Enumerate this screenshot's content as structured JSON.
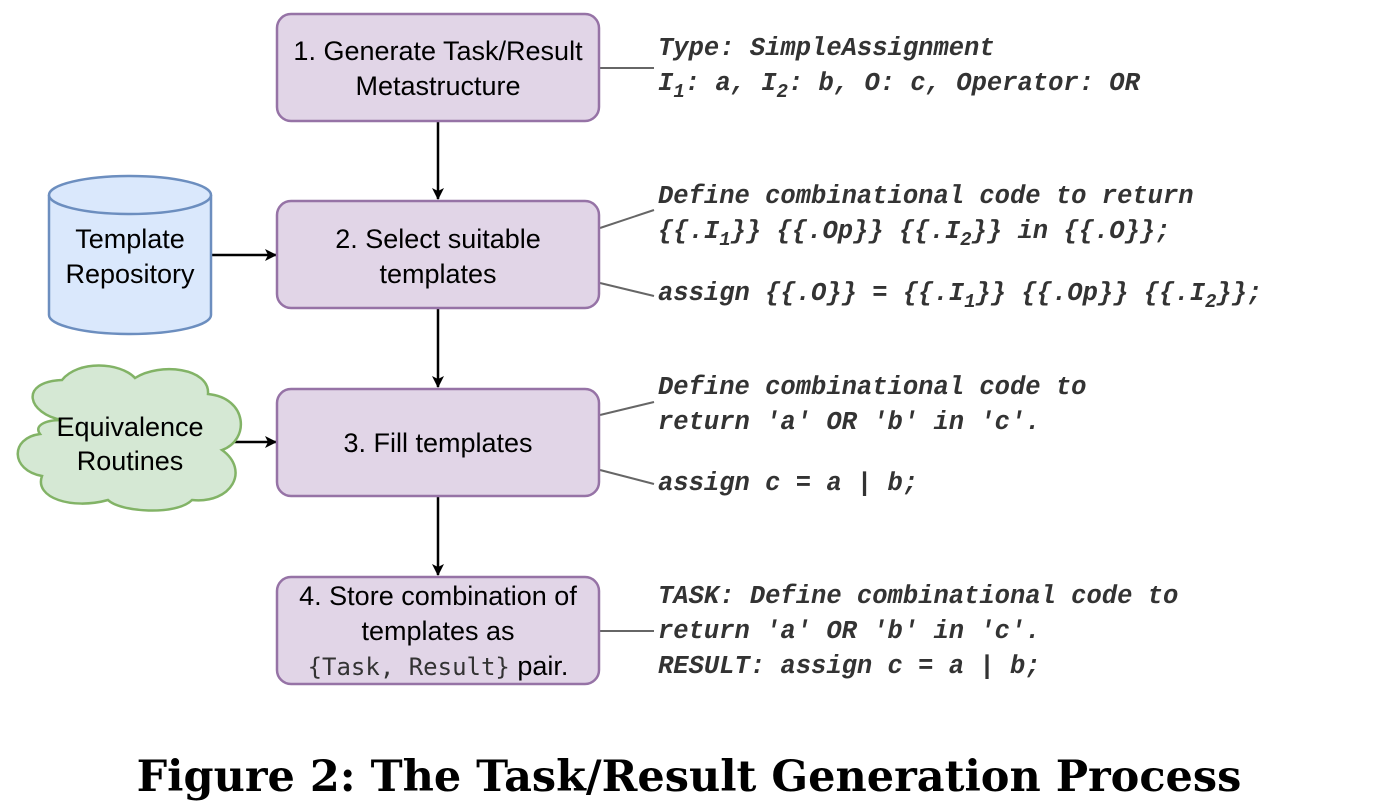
{
  "caption": "Figure 2: The Task/Result Generation Process",
  "colors": {
    "process_fill": "#e1d5e7",
    "process_stroke": "#9673a6",
    "repository_fill": "#dae8fc",
    "repository_stroke": "#6c8ebf",
    "cloud_fill": "#d5e8d4",
    "cloud_stroke": "#82b366"
  },
  "steps": [
    {
      "lines": [
        "1. Generate Task/Result",
        "Metastructure"
      ]
    },
    {
      "lines": [
        "2. Select suitable",
        "templates"
      ]
    },
    {
      "lines": [
        "3. Fill templates"
      ]
    },
    {
      "lines": [
        "4. Store combination of",
        "templates as"
      ],
      "code": "{Task, Result}",
      "suffix": " pair."
    }
  ],
  "inputs": {
    "repository": [
      "Template",
      "Repository"
    ],
    "routines": [
      "Equivalence",
      "Routines"
    ]
  },
  "annotations": {
    "a1": {
      "line1": "Type: SimpleAssignment",
      "line2": {
        "i1": "I",
        "i1_sub": "1",
        "i1_rest": ": a, ",
        "i2": "I",
        "i2_sub": "2",
        "rest": ": b, O: c, Operator: OR"
      }
    },
    "a2a": {
      "line1": "Define combinational code to return",
      "line2": {
        "p1": "{{.I",
        "s1": "1",
        "p2": "}} {{.Op}} {{.I",
        "s2": "2",
        "p3": "}} in {{.O}};"
      }
    },
    "a2b": {
      "p1": "assign {{.O}} = {{.I",
      "s1": "1",
      "p2": "}} {{.Op}} {{.I",
      "s2": "2",
      "p3": "}};"
    },
    "a3a": {
      "line1": "Define combinational code to",
      "line2": "return 'a' OR 'b' in 'c'."
    },
    "a3b": "assign c = a | b;",
    "a4": {
      "line1": "TASK: Define combinational code to",
      "line2": "return 'a' OR 'b' in 'c'.",
      "line3": "RESULT: assign c = a | b;"
    }
  }
}
